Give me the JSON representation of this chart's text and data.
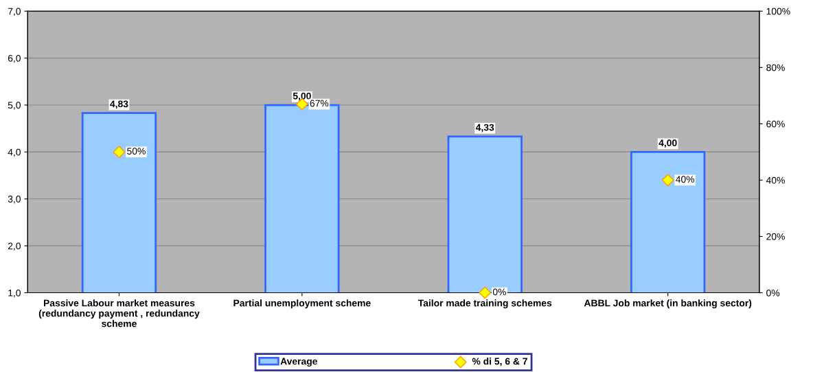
{
  "chart_data": {
    "type": "bar",
    "categories": [
      "Passive Labour market measures\n(redundancy payment , redundancy\nscheme",
      "Partial unemployment scheme",
      "Tailor made training schemes",
      "ABBL Job market (in banking sector)"
    ],
    "series": [
      {
        "name": "Average",
        "color": "#99ccff",
        "values": [
          4.83,
          5.0,
          4.33,
          4.0
        ],
        "value_labels": [
          "4,83",
          "5,00",
          "4,33",
          "4,00"
        ]
      },
      {
        "name": "% di 5, 6 & 7",
        "type": "scatter",
        "axis": "y2",
        "color": "#ffff00",
        "values": [
          50,
          67,
          0,
          40
        ],
        "value_labels": [
          "50%",
          "67%",
          "0%",
          "40%"
        ]
      }
    ],
    "ylim": [
      1,
      7
    ],
    "yticks": [
      {
        "value": 1,
        "label": "1,0"
      },
      {
        "value": 2,
        "label": "2,0"
      },
      {
        "value": 3,
        "label": "3,0"
      },
      {
        "value": 4,
        "label": "4,0"
      },
      {
        "value": 5,
        "label": "5,0"
      },
      {
        "value": 6,
        "label": "6,0"
      },
      {
        "value": 7,
        "label": "7,0"
      }
    ],
    "y2lim": [
      0,
      100
    ],
    "y2ticks": [
      {
        "value": 0,
        "label": "0%"
      },
      {
        "value": 20,
        "label": "20%"
      },
      {
        "value": 40,
        "label": "40%"
      },
      {
        "value": 60,
        "label": "60%"
      },
      {
        "value": 80,
        "label": "80%"
      },
      {
        "value": 100,
        "label": "100%"
      }
    ],
    "grid": "y",
    "legend": "bottom",
    "marker": "diamond"
  }
}
